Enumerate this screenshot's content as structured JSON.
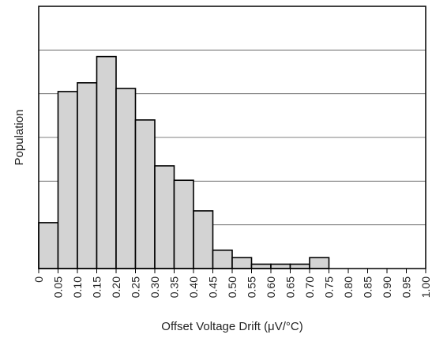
{
  "chart_data": {
    "type": "bar",
    "title": "",
    "xlabel": "Offset Voltage Drift (μV/°C)",
    "ylabel": "Population",
    "x_ticks": [
      "0",
      "0.05",
      "0.10",
      "0.15",
      "0.20",
      "0.25",
      "0.30",
      "0.35",
      "0.40",
      "0.45",
      "0.50",
      "0.55",
      "0.60",
      "0.65",
      "0.70",
      "0.75",
      "0.80",
      "0.85",
      "0.90",
      "0.95",
      "1.00"
    ],
    "bins": [
      {
        "range": [
          0.0,
          0.05
        ],
        "value": 1.05
      },
      {
        "range": [
          0.05,
          0.1
        ],
        "value": 4.05
      },
      {
        "range": [
          0.1,
          0.15
        ],
        "value": 4.25
      },
      {
        "range": [
          0.15,
          0.2
        ],
        "value": 4.85
      },
      {
        "range": [
          0.2,
          0.25
        ],
        "value": 4.12
      },
      {
        "range": [
          0.25,
          0.3
        ],
        "value": 3.4
      },
      {
        "range": [
          0.3,
          0.35
        ],
        "value": 2.35
      },
      {
        "range": [
          0.35,
          0.4
        ],
        "value": 2.02
      },
      {
        "range": [
          0.4,
          0.45
        ],
        "value": 1.32
      },
      {
        "range": [
          0.45,
          0.5
        ],
        "value": 0.42
      },
      {
        "range": [
          0.5,
          0.55
        ],
        "value": 0.25
      },
      {
        "range": [
          0.55,
          0.6
        ],
        "value": 0.1
      },
      {
        "range": [
          0.6,
          0.65
        ],
        "value": 0.1
      },
      {
        "range": [
          0.65,
          0.7
        ],
        "value": 0.1
      },
      {
        "range": [
          0.7,
          0.75
        ],
        "value": 0.25
      }
    ],
    "xlim": [
      0,
      1.0
    ],
    "ylim": [
      0,
      6
    ],
    "y_gridlines": [
      1,
      2,
      3,
      4,
      5
    ],
    "y_tick_labels": false,
    "grid": true,
    "bar_fill": "#d3d3d3",
    "bar_edge": "#000000",
    "legend": "none"
  }
}
